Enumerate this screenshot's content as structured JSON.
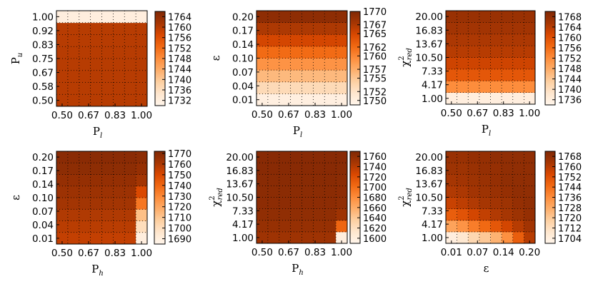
{
  "chart_data": [
    {
      "type": "heatmap",
      "xlabel": "P",
      "xlabel_sub": "l",
      "ylabel": "P",
      "ylabel_sub": "u",
      "ylabel_sup": "",
      "x_ticks": [
        "0.50",
        "0.67",
        "0.83",
        "1.00"
      ],
      "y_ticks": [
        "0.50",
        "0.58",
        "0.67",
        "0.75",
        "0.83",
        "0.92",
        "1.00"
      ],
      "colorbar_ticks": [
        "1732",
        "1736",
        "1740",
        "1744",
        "1748",
        "1752",
        "1756",
        "1760",
        "1764"
      ],
      "clim": [
        1730,
        1766
      ],
      "grid": true,
      "z": [
        [
          1760,
          1760,
          1760,
          1760,
          1760,
          1760,
          1760,
          1760
        ],
        [
          1760,
          1760,
          1760,
          1760,
          1760,
          1760,
          1760,
          1760
        ],
        [
          1760,
          1760,
          1760,
          1760,
          1760,
          1760,
          1760,
          1760
        ],
        [
          1760,
          1760,
          1760,
          1760,
          1760,
          1760,
          1760,
          1760
        ],
        [
          1760,
          1760,
          1760,
          1760,
          1760,
          1760,
          1760,
          1760
        ],
        [
          1760,
          1760,
          1760,
          1760,
          1760,
          1760,
          1760,
          1760
        ],
        [
          1760,
          1760,
          1760,
          1760,
          1760,
          1760,
          1760,
          1760
        ],
        [
          1732,
          1732,
          1732,
          1732,
          1732,
          1732,
          1732,
          1732
        ]
      ]
    },
    {
      "type": "heatmap",
      "xlabel": "P",
      "xlabel_sub": "l",
      "ylabel": "ε",
      "ylabel_sub": "",
      "ylabel_sup": "",
      "x_ticks": [
        "0.50",
        "0.67",
        "0.83",
        "1.00"
      ],
      "y_ticks": [
        "0.01",
        "0.04",
        "0.07",
        "0.10",
        "0.14",
        "0.17",
        "0.20"
      ],
      "colorbar_ticks": [
        "1750",
        "1752",
        "1755",
        "1757",
        "1760",
        "1762",
        "1765",
        "1767",
        "1770"
      ],
      "clim": [
        1749,
        1770
      ],
      "grid": true,
      "z": [
        [
          1750,
          1750,
          1750,
          1750,
          1750,
          1750,
          1750,
          1750
        ],
        [
          1753,
          1753,
          1753,
          1753,
          1753,
          1753,
          1753,
          1753
        ],
        [
          1756,
          1756,
          1756,
          1756,
          1756,
          1756,
          1756,
          1756
        ],
        [
          1759,
          1759,
          1759,
          1759,
          1759,
          1759,
          1759,
          1759
        ],
        [
          1762,
          1762,
          1762,
          1762,
          1762,
          1762,
          1762,
          1762
        ],
        [
          1765,
          1765,
          1765,
          1765,
          1765,
          1765,
          1765,
          1765
        ],
        [
          1767,
          1767,
          1767,
          1767,
          1767,
          1767,
          1767,
          1767
        ],
        [
          1769,
          1769,
          1769,
          1769,
          1769,
          1769,
          1769,
          1769
        ]
      ]
    },
    {
      "type": "heatmap",
      "xlabel": "P",
      "xlabel_sub": "l",
      "ylabel": "χ",
      "ylabel_sub": "red",
      "ylabel_sup": "2",
      "x_ticks": [
        "0.50",
        "0.67",
        "0.83",
        "1.00"
      ],
      "y_ticks": [
        "1.00",
        "4.17",
        "7.33",
        "10.50",
        "13.67",
        "16.83",
        "20.00"
      ],
      "colorbar_ticks": [
        "1736",
        "1740",
        "1744",
        "1748",
        "1752",
        "1756",
        "1760",
        "1764",
        "1768"
      ],
      "clim": [
        1734,
        1770
      ],
      "grid": true,
      "z": [
        [
          1736,
          1736,
          1736,
          1736,
          1736,
          1736,
          1736,
          1736
        ],
        [
          1752,
          1752,
          1752,
          1752,
          1752,
          1752,
          1752,
          1752
        ],
        [
          1759,
          1759,
          1759,
          1759,
          1759,
          1759,
          1759,
          1759
        ],
        [
          1762,
          1762,
          1762,
          1762,
          1762,
          1762,
          1762,
          1762
        ],
        [
          1764,
          1764,
          1764,
          1764,
          1764,
          1764,
          1764,
          1764
        ],
        [
          1765,
          1765,
          1765,
          1765,
          1765,
          1765,
          1765,
          1765
        ],
        [
          1766,
          1766,
          1766,
          1766,
          1766,
          1766,
          1766,
          1766
        ],
        [
          1767,
          1767,
          1767,
          1767,
          1767,
          1767,
          1767,
          1767
        ]
      ]
    },
    {
      "type": "heatmap",
      "xlabel": "P",
      "xlabel_sub": "h",
      "ylabel": "ε",
      "ylabel_sub": "",
      "ylabel_sup": "",
      "x_ticks": [
        "0.50",
        "0.67",
        "0.83",
        "1.00"
      ],
      "y_ticks": [
        "0.01",
        "0.04",
        "0.07",
        "0.10",
        "0.14",
        "0.17",
        "0.20"
      ],
      "colorbar_ticks": [
        "1690",
        "1700",
        "1710",
        "1720",
        "1730",
        "1740",
        "1750",
        "1760",
        "1770"
      ],
      "clim": [
        1685,
        1772
      ],
      "grid": true,
      "z": [
        [
          1755,
          1755,
          1755,
          1755,
          1755,
          1755,
          1755,
          1690
        ],
        [
          1757,
          1757,
          1757,
          1757,
          1757,
          1757,
          1757,
          1700
        ],
        [
          1759,
          1759,
          1759,
          1759,
          1759,
          1759,
          1759,
          1712
        ],
        [
          1762,
          1762,
          1762,
          1762,
          1762,
          1762,
          1762,
          1735
        ],
        [
          1764,
          1764,
          1764,
          1764,
          1764,
          1764,
          1764,
          1750
        ],
        [
          1766,
          1766,
          1766,
          1766,
          1766,
          1766,
          1766,
          1762
        ],
        [
          1768,
          1768,
          1768,
          1768,
          1768,
          1768,
          1768,
          1766
        ],
        [
          1769,
          1769,
          1769,
          1769,
          1769,
          1769,
          1769,
          1768
        ]
      ]
    },
    {
      "type": "heatmap",
      "xlabel": "P",
      "xlabel_sub": "h",
      "ylabel": "χ",
      "ylabel_sub": "red",
      "ylabel_sup": "2",
      "x_ticks": [
        "0.50",
        "0.67",
        "0.83",
        "1.00"
      ],
      "y_ticks": [
        "1.00",
        "4.17",
        "7.33",
        "10.50",
        "13.67",
        "16.83",
        "20.00"
      ],
      "colorbar_ticks": [
        "1600",
        "1620",
        "1640",
        "1660",
        "1680",
        "1700",
        "1720",
        "1740",
        "1760"
      ],
      "clim": [
        1590,
        1770
      ],
      "grid": true,
      "z": [
        [
          1752,
          1752,
          1752,
          1752,
          1752,
          1752,
          1752,
          1600
        ],
        [
          1757,
          1757,
          1757,
          1757,
          1757,
          1757,
          1757,
          1705
        ],
        [
          1760,
          1760,
          1760,
          1760,
          1760,
          1760,
          1760,
          1752
        ],
        [
          1762,
          1762,
          1762,
          1762,
          1762,
          1762,
          1762,
          1760
        ],
        [
          1763,
          1763,
          1763,
          1763,
          1763,
          1763,
          1763,
          1762
        ],
        [
          1764,
          1764,
          1764,
          1764,
          1764,
          1764,
          1764,
          1763
        ],
        [
          1765,
          1765,
          1765,
          1765,
          1765,
          1765,
          1765,
          1764
        ],
        [
          1765,
          1765,
          1765,
          1765,
          1765,
          1765,
          1765,
          1765
        ]
      ]
    },
    {
      "type": "heatmap",
      "xlabel": "ε",
      "xlabel_sub": "",
      "ylabel": "χ",
      "ylabel_sub": "red",
      "ylabel_sup": "2",
      "x_ticks": [
        "0.01",
        "0.07",
        "0.14",
        "0.20"
      ],
      "y_ticks": [
        "1.00",
        "4.17",
        "7.33",
        "10.50",
        "13.67",
        "16.83",
        "20.00"
      ],
      "colorbar_ticks": [
        "1704",
        "1712",
        "1720",
        "1728",
        "1736",
        "1744",
        "1752",
        "1760",
        "1768"
      ],
      "clim": [
        1700,
        1772
      ],
      "grid": true,
      "z": [
        [
          1704,
          1708,
          1715,
          1720,
          1726,
          1735,
          1748,
          1760
        ],
        [
          1730,
          1734,
          1740,
          1745,
          1750,
          1755,
          1760,
          1764
        ],
        [
          1748,
          1751,
          1755,
          1758,
          1761,
          1763,
          1765,
          1767
        ],
        [
          1757,
          1759,
          1761,
          1763,
          1764,
          1765,
          1767,
          1768
        ],
        [
          1761,
          1762,
          1764,
          1765,
          1766,
          1767,
          1768,
          1768
        ],
        [
          1763,
          1764,
          1765,
          1766,
          1767,
          1768,
          1768,
          1768
        ],
        [
          1765,
          1765,
          1766,
          1767,
          1767,
          1768,
          1768,
          1768
        ],
        [
          1766,
          1766,
          1767,
          1767,
          1768,
          1768,
          1768,
          1768
        ]
      ]
    }
  ]
}
